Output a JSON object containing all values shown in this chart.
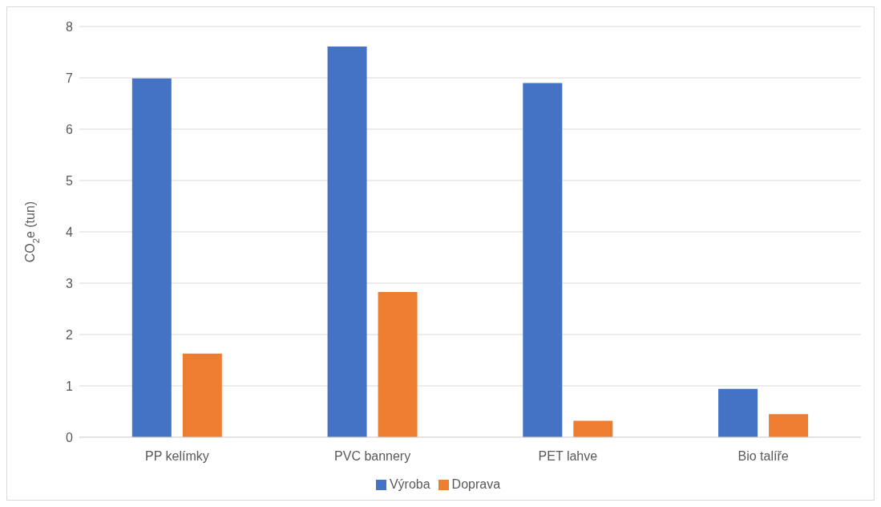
{
  "chart_data": {
    "type": "bar",
    "ylabel": "CO$_{2}$e (tun)",
    "categories": [
      "PP kelímky",
      "PVC bannery",
      "PET lahve",
      "Bio talíře"
    ],
    "series": [
      {
        "name": "Výroba",
        "color": "#4472c4",
        "values": [
          6.99,
          7.61,
          6.9,
          0.94
        ]
      },
      {
        "name": "Doprava",
        "color": "#ed7d31",
        "values": [
          1.63,
          2.83,
          0.32,
          0.45
        ]
      }
    ],
    "ylim": [
      0,
      8
    ],
    "yticks": [
      0,
      1,
      2,
      3,
      4,
      5,
      6,
      7,
      8
    ],
    "grid": "y",
    "legend": "bottom"
  }
}
